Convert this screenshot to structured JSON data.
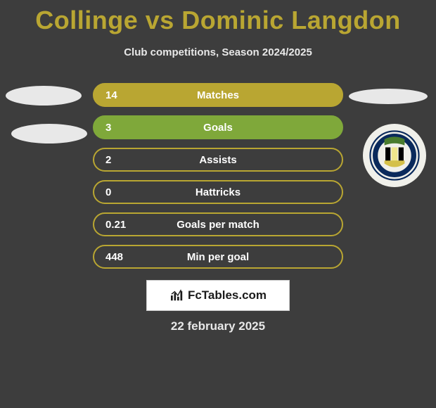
{
  "title": "Collinge vs Dominic Langdon",
  "subtitle": "Club competitions, Season 2024/2025",
  "date": "22 february 2025",
  "fctables_label": "FcTables.com",
  "colors": {
    "accent": "#b9a632",
    "accent_dark": "#9c8b28",
    "green": "#7fa83a",
    "text_light": "#e8e8e8",
    "bar_text": "#ffffff"
  },
  "stats": [
    {
      "label": "Matches",
      "left_value": "14",
      "fill_pct": 100,
      "fill_color": "#b9a632",
      "border_color": "#b9a632"
    },
    {
      "label": "Goals",
      "left_value": "3",
      "fill_pct": 100,
      "fill_color": "#7fa83a",
      "border_color": "#7fa83a"
    },
    {
      "label": "Assists",
      "left_value": "2",
      "fill_pct": 0,
      "fill_color": "#b9a632",
      "border_color": "#b9a632"
    },
    {
      "label": "Hattricks",
      "left_value": "0",
      "fill_pct": 0,
      "fill_color": "#b9a632",
      "border_color": "#b9a632"
    },
    {
      "label": "Goals per match",
      "left_value": "0.21",
      "fill_pct": 0,
      "fill_color": "#b9a632",
      "border_color": "#b9a632"
    },
    {
      "label": "Min per goal",
      "left_value": "448",
      "fill_pct": 0,
      "fill_color": "#b9a632",
      "border_color": "#b9a632"
    }
  ],
  "crest": {
    "top_color": "#4a7c2e",
    "stripe_colors": [
      "#000000",
      "#f0e68c",
      "#000000"
    ],
    "bottom_color": "#d4c04a",
    "ring_text": "SOLIHULL MOORS FC",
    "ring_color": "#0a2a5c"
  }
}
